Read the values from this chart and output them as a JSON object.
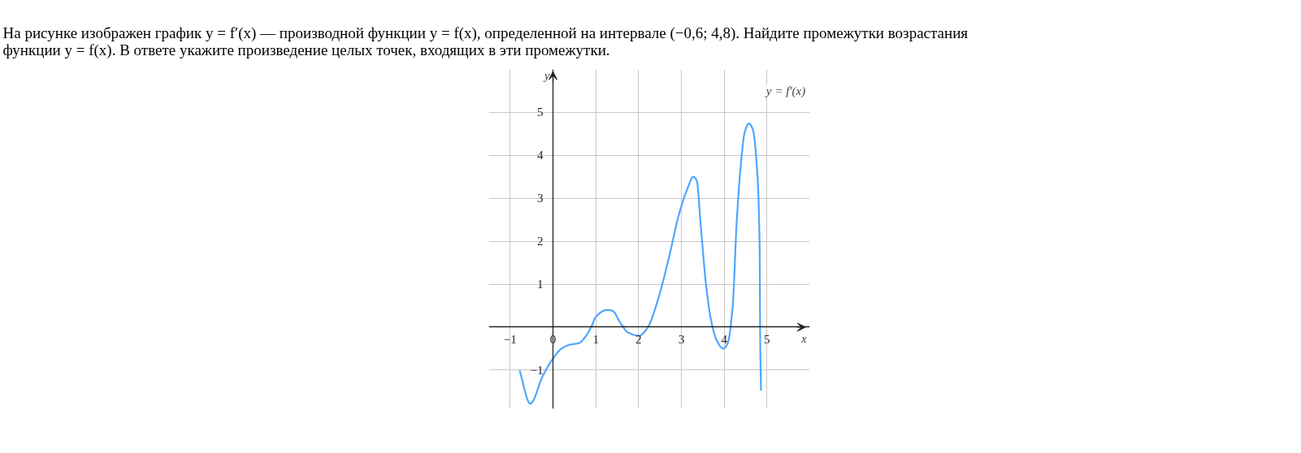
{
  "chart_data": {
    "type": "line",
    "title": "На рисунке изображен график y = f′(x) — производной функции y = f(x), определенной на интервале (−0,6; 4,8). Найдите промежутки возрастания\nфункции y = f(x). В ответе укажите произведение целых точек, входящих в эти промежутки.",
    "xlabel": "x",
    "ylabel": "y",
    "annotations": [
      "y = f′(x)"
    ],
    "x": [
      -0.78,
      -0.53,
      -0.24,
      0,
      0.2,
      0.39,
      0.61,
      0.76,
      0.89,
      1.01,
      1.26,
      1.39,
      1.58,
      1.76,
      2.01,
      2.2,
      2.45,
      2.7,
      2.95,
      3.14,
      3.28,
      3.36,
      3.45,
      3.58,
      3.7,
      3.83,
      3.98,
      4.08,
      4.2,
      4.29,
      4.39,
      4.48,
      4.58,
      4.67,
      4.76,
      4.83,
      4.84,
      4.86
    ],
    "series": [
      {
        "color": "#4da6ff",
        "values": [
          -1.01,
          -1.78,
          -1.14,
          -0.73,
          -0.5,
          -0.41,
          -0.37,
          -0.22,
          0,
          0.25,
          0.4,
          0.38,
          0.09,
          -0.13,
          -0.2,
          -0.03,
          0.63,
          1.58,
          2.65,
          3.22,
          3.5,
          3.41,
          2.4,
          0.95,
          0.13,
          -0.32,
          -0.5,
          -0.38,
          0.5,
          2.4,
          3.79,
          4.54,
          4.74,
          4.6,
          3.79,
          1.77,
          -0.13,
          -1.48
        ]
      }
    ],
    "xlim": [
      -1.5,
      6.0
    ],
    "ylim": [
      -1.9,
      6.0
    ],
    "xticks": [
      {
        "value": -1,
        "label": "−1"
      },
      0,
      1,
      2,
      3,
      4,
      5
    ],
    "yticks": [
      {
        "value": -1,
        "label": "−1"
      },
      1,
      2,
      3,
      4,
      5
    ],
    "grid": true
  }
}
